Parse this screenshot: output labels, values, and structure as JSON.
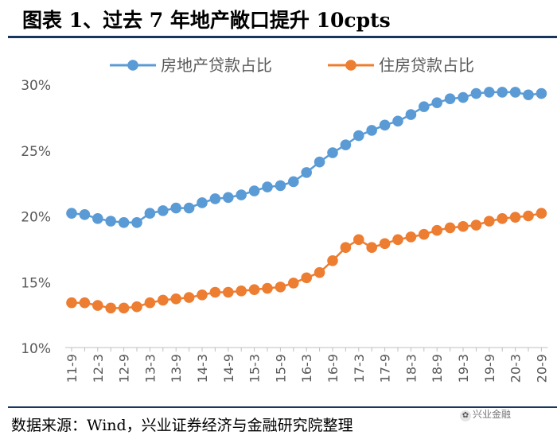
{
  "header": {
    "title": "图表 1、过去 7 年地产敞口提升 10cpts"
  },
  "footer": {
    "source": "数据来源：Wind，兴业证券经济与金融研究院整理",
    "watermark": "兴业金融"
  },
  "chart_data": {
    "type": "line",
    "title": "",
    "xlabel": "",
    "ylabel": "",
    "ylim": [
      10,
      30
    ],
    "yticks": [
      "10%",
      "15%",
      "20%",
      "25%",
      "30%"
    ],
    "ytick_values": [
      10,
      15,
      20,
      25,
      30
    ],
    "legend_position": "top",
    "categories": [
      "11-9",
      "11-12",
      "12-3",
      "12-6",
      "12-9",
      "12-12",
      "13-3",
      "13-6",
      "13-9",
      "13-12",
      "14-3",
      "14-6",
      "14-9",
      "14-12",
      "15-3",
      "15-6",
      "15-9",
      "15-12",
      "16-3",
      "16-6",
      "16-9",
      "16-12",
      "17-3",
      "17-6",
      "17-9",
      "17-12",
      "18-3",
      "18-6",
      "18-9",
      "18-12",
      "19-3",
      "19-6",
      "19-9",
      "19-12",
      "20-3",
      "20-6",
      "20-9"
    ],
    "xtick_labels": [
      "11-9",
      "12-3",
      "12-9",
      "13-3",
      "13-9",
      "14-3",
      "14-9",
      "15-3",
      "15-9",
      "16-3",
      "16-9",
      "17-3",
      "17-9",
      "18-3",
      "18-9",
      "19-3",
      "19-9",
      "20-3",
      "20-9"
    ],
    "series": [
      {
        "name": "房地产贷款占比",
        "color": "#5b9bd5",
        "values": [
          20.2,
          20.1,
          19.8,
          19.6,
          19.5,
          19.5,
          20.2,
          20.4,
          20.6,
          20.6,
          21.0,
          21.3,
          21.4,
          21.6,
          21.9,
          22.2,
          22.3,
          22.6,
          23.3,
          24.1,
          24.8,
          25.4,
          26.1,
          26.5,
          26.9,
          27.2,
          27.7,
          28.3,
          28.6,
          28.9,
          29.0,
          29.3,
          29.4,
          29.4,
          29.4,
          29.2,
          29.3
        ]
      },
      {
        "name": "住房贷款占比",
        "color": "#ed7d31",
        "values": [
          13.4,
          13.4,
          13.2,
          13.0,
          13.0,
          13.1,
          13.4,
          13.6,
          13.7,
          13.8,
          14.0,
          14.2,
          14.2,
          14.3,
          14.4,
          14.5,
          14.6,
          14.9,
          15.3,
          15.7,
          16.6,
          17.6,
          18.2,
          17.6,
          17.9,
          18.2,
          18.4,
          18.6,
          18.9,
          19.1,
          19.2,
          19.3,
          19.6,
          19.8,
          19.9,
          20.0,
          20.2
        ]
      }
    ]
  }
}
